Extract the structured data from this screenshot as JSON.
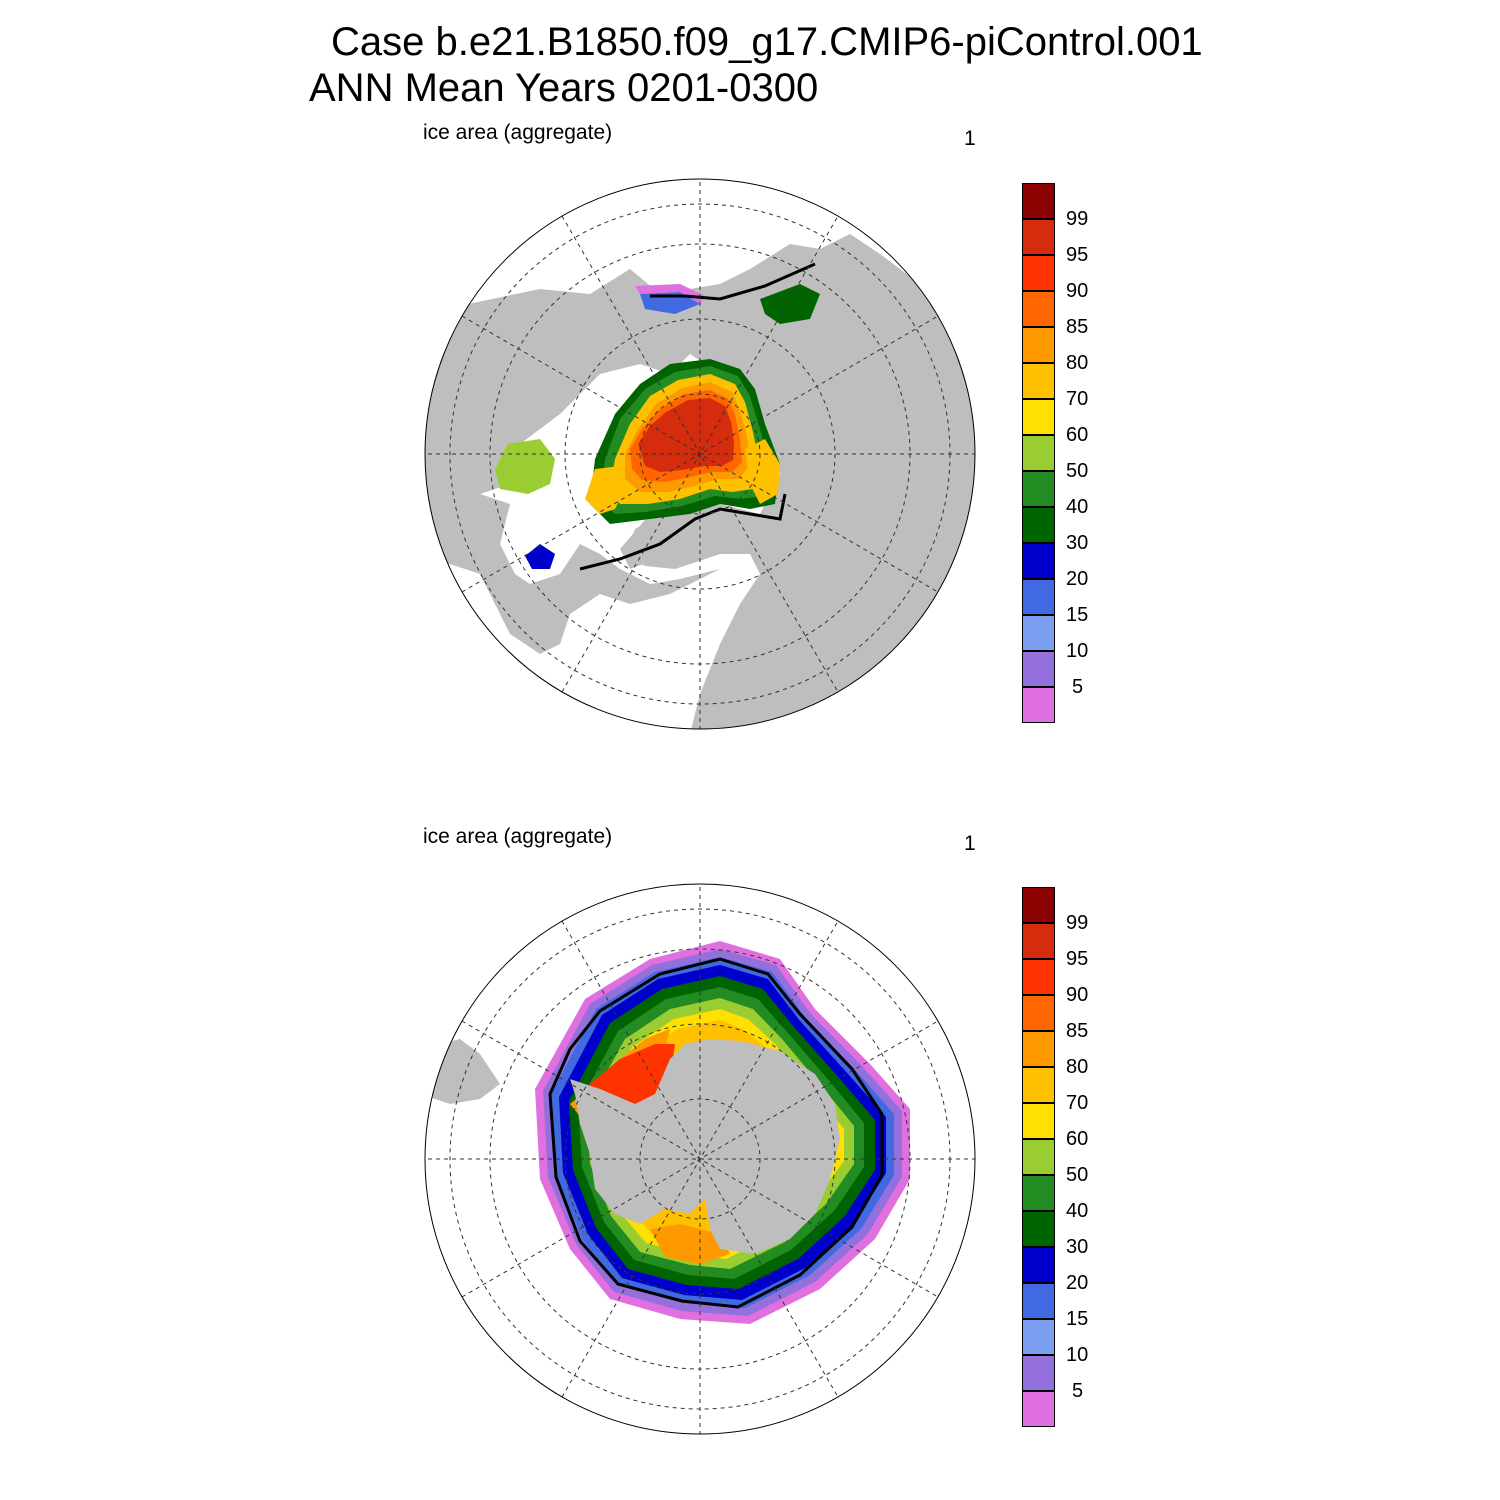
{
  "title": {
    "line1": "Case b.e21.B1850.f09_g17.CMIP6-piControl.001",
    "line2": "ANN Mean    Years 0201-0300"
  },
  "panels": [
    {
      "id": "north",
      "label": "ice area  (aggregate)",
      "number": "1",
      "hemisphere": "Northern"
    },
    {
      "id": "south",
      "label": "ice area  (aggregate)",
      "number": "1",
      "hemisphere": "Southern"
    }
  ],
  "colorbar": {
    "colors_top_to_bottom": [
      "#8b0000",
      "#d42c0c",
      "#ff3300",
      "#ff6600",
      "#ff9900",
      "#ffc000",
      "#ffe000",
      "#9acd32",
      "#228b22",
      "#006400",
      "#0000cd",
      "#4169e1",
      "#7b9ef0",
      "#9370db",
      "#e070e0"
    ],
    "labels_top_to_bottom": [
      "99",
      "95",
      "90",
      "85",
      "80",
      "70",
      "60",
      "50",
      "40",
      "30",
      "20",
      "15",
      "10",
      "5"
    ]
  },
  "map_colors": {
    "land": "#bebebe",
    "ocean": "#ffffff",
    "grid": "#333333",
    "ice_edge": "#000000"
  }
}
